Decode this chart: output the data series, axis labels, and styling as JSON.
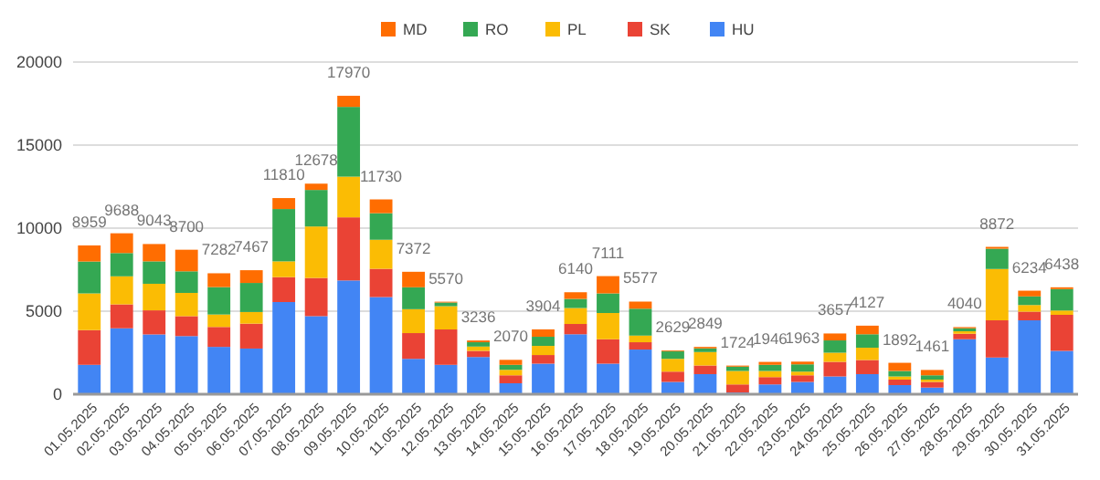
{
  "chart_data": {
    "type": "bar",
    "stacked": true,
    "categories": [
      "01.05.2025",
      "02.05.2025",
      "03.05.2025",
      "04.05.2025",
      "05.05.2025",
      "06.05.2025",
      "07.05.2025",
      "08.05.2025",
      "09.05.2025",
      "10.05.2025",
      "11.05.2025",
      "12.05.2025",
      "13.05.2025",
      "14.05.2025",
      "15.05.2025",
      "16.05.2025",
      "17.05.2025",
      "18.05.2025",
      "19.05.2025",
      "20.05.2025",
      "21.05.2025",
      "22.05.2025",
      "23.05.2025",
      "24.05.2025",
      "25.05.2025",
      "26.05.2025",
      "27.05.2025",
      "28.05.2025",
      "29.05.2025",
      "30.05.2025",
      "31.05.2025"
    ],
    "series": [
      {
        "name": "HU",
        "color": "#4285f4",
        "values": [
          1770,
          3970,
          3600,
          3500,
          2850,
          2750,
          5550,
          4700,
          6850,
          5850,
          2130,
          1770,
          2240,
          660,
          1840,
          3610,
          1840,
          2690,
          740,
          1210,
          100,
          590,
          740,
          1070,
          1210,
          550,
          400,
          3310,
          2210,
          4450,
          2610
        ]
      },
      {
        "name": "SK",
        "color": "#ea4335",
        "values": [
          2090,
          1440,
          1450,
          1200,
          1200,
          1500,
          1500,
          2300,
          3800,
          1700,
          1550,
          2130,
          370,
          480,
          520,
          620,
          1470,
          440,
          620,
          520,
          490,
          440,
          400,
          880,
          850,
          330,
          340,
          330,
          2240,
          520,
          2170
        ]
      },
      {
        "name": "PL",
        "color": "#fbbc04",
        "values": [
          2210,
          1690,
          1600,
          1400,
          750,
          700,
          950,
          3100,
          2450,
          1750,
          1440,
          1400,
          260,
          330,
          550,
          960,
          1580,
          400,
          770,
          810,
          810,
          370,
          220,
          550,
          740,
          190,
          140,
          150,
          3090,
          400,
          260
        ]
      },
      {
        "name": "RO",
        "color": "#34a853",
        "values": [
          1920,
          1400,
          1350,
          1300,
          1650,
          1750,
          3150,
          2200,
          4200,
          1600,
          1320,
          220,
          260,
          300,
          550,
          550,
          1180,
          1620,
          450,
          220,
          260,
          370,
          440,
          740,
          810,
          330,
          260,
          180,
          1220,
          520,
          1290
        ]
      },
      {
        "name": "MD",
        "color": "#ff6d01",
        "values": [
          970,
          1190,
          1043,
          1300,
          832,
          767,
          660,
          378,
          670,
          830,
          932,
          50,
          106,
          300,
          444,
          400,
          1041,
          427,
          49,
          89,
          64,
          176,
          163,
          417,
          517,
          492,
          321,
          70,
          112,
          344,
          108
        ]
      }
    ],
    "totals": [
      "8959",
      "9688",
      "9043",
      "8700",
      "7282",
      "7467",
      "11810",
      "12678",
      "17970",
      "11730",
      "7372",
      "5570",
      "3236",
      "2070",
      "3904",
      "6140",
      "7111",
      "5577",
      "2629",
      "2849",
      "1724",
      "1946",
      "1963",
      "3657",
      "4127",
      "1892",
      "1461",
      "4040",
      "8872",
      "6234",
      "6438"
    ],
    "ylim": [
      0,
      20000
    ],
    "yticks": [
      0,
      5000,
      10000,
      15000,
      20000
    ],
    "grid": "y",
    "legend": "top"
  }
}
